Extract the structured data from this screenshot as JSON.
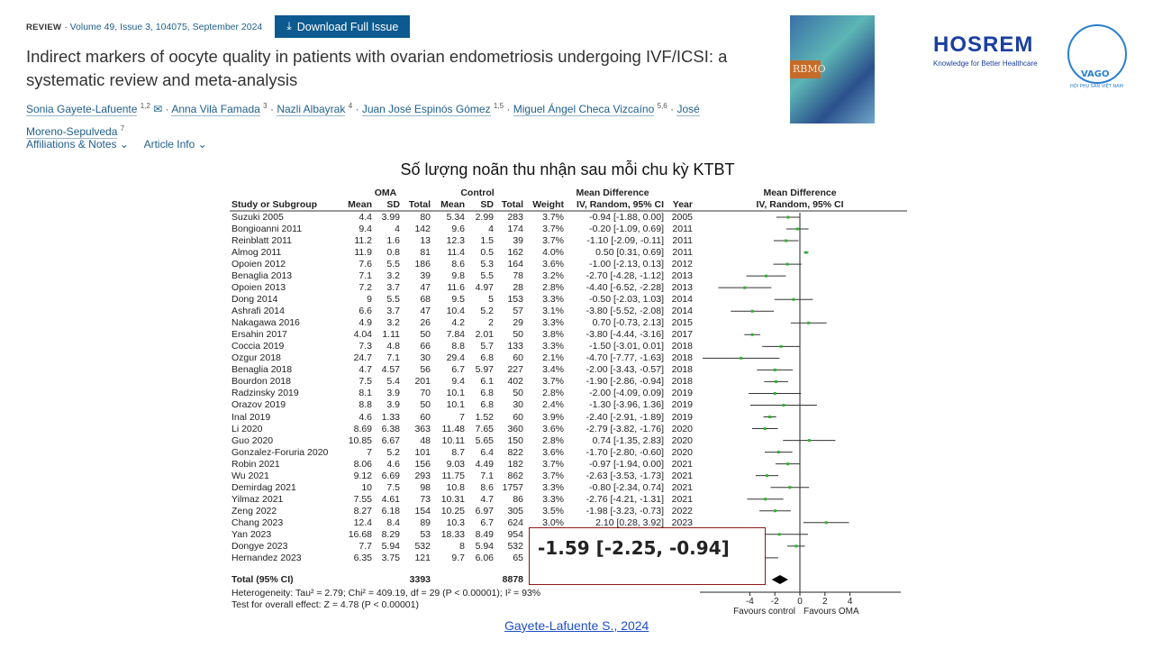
{
  "article": {
    "type": "REVIEW",
    "sep": "·",
    "citation": "Volume 49, Issue 3, 104075, September 2024",
    "download_label": "Download Full Issue",
    "download_icon": "download-icon",
    "title": "Indirect markers of oocyte quality in patients with ovarian endometriosis undergoing IVF/ICSI: a systematic review and meta-analysis",
    "authors": [
      {
        "name": "Sonia Gayete-Lafuente",
        "sup": "1,2"
      },
      {
        "name": "Anna Vilà Famada",
        "sup": "3"
      },
      {
        "name": "Nazli Albayrak",
        "sup": "4"
      },
      {
        "name": "Juan José Espinós Gómez",
        "sup": "1,5"
      },
      {
        "name": "Miguel Ángel Checa Vizcaíno",
        "sup": "5,6"
      },
      {
        "name": "José Moreno-Sepulveda",
        "sup": "7"
      }
    ],
    "affiliations_label": "Affiliations & Notes",
    "article_info_label": "Article Info"
  },
  "logos": {
    "journal_cover": "RBMO",
    "hosrem": "HOSREM",
    "hosrem_tagline": "Knowledge for Better Healthcare",
    "vago": "VAGO",
    "vago_sub": "HỘI PHỤ SẢN VIỆT NAM"
  },
  "slide_title": "Số lượng noãn thu nhận sau mỗi chu kỳ KTBT",
  "highlight": "-1.59 [-2.25, -0.94]",
  "source_link": "Gayete-Lafuente S., 2024",
  "chart_data": {
    "type": "table",
    "plot_type": "forest",
    "headers": {
      "group_oma": "OMA",
      "group_control": "Control",
      "group_md": "Mean Difference",
      "study": "Study or Subgroup",
      "mean": "Mean",
      "sd": "SD",
      "total": "Total",
      "weight": "Weight",
      "md_method": "IV, Random, 95% CI",
      "year": "Year",
      "plot_title": "Mean Difference",
      "plot_method": "IV, Random, 95% CI"
    },
    "rows": [
      {
        "study": "Suzuki 2005",
        "m1": "4.4",
        "sd1": "3.99",
        "n1": "80",
        "m2": "5.34",
        "sd2": "2.99",
        "n2": "283",
        "w": "3.7%",
        "md_text": "-0.94 [-1.88, 0.00]",
        "year": "2005",
        "md": -0.94,
        "lo": -1.88,
        "hi": 0.0
      },
      {
        "study": "Bongioanni 2011",
        "m1": "9.4",
        "sd1": "4",
        "n1": "142",
        "m2": "9.6",
        "sd2": "4",
        "n2": "174",
        "w": "3.7%",
        "md_text": "-0.20 [-1.09, 0.69]",
        "year": "2011",
        "md": -0.2,
        "lo": -1.09,
        "hi": 0.69
      },
      {
        "study": "Reinblatt 2011",
        "m1": "11.2",
        "sd1": "1.6",
        "n1": "13",
        "m2": "12.3",
        "sd2": "1.5",
        "n2": "39",
        "w": "3.7%",
        "md_text": "-1.10 [-2.09, -0.11]",
        "year": "2011",
        "md": -1.1,
        "lo": -2.09,
        "hi": -0.11
      },
      {
        "study": "Almog 2011",
        "m1": "11.9",
        "sd1": "0.8",
        "n1": "81",
        "m2": "11.4",
        "sd2": "0.5",
        "n2": "162",
        "w": "4.0%",
        "md_text": "0.50 [0.31, 0.69]",
        "year": "2011",
        "md": 0.5,
        "lo": 0.31,
        "hi": 0.69
      },
      {
        "study": "Opoien 2012",
        "m1": "7.6",
        "sd1": "5.5",
        "n1": "186",
        "m2": "8.6",
        "sd2": "5.3",
        "n2": "164",
        "w": "3.6%",
        "md_text": "-1.00 [-2.13, 0.13]",
        "year": "2012",
        "md": -1.0,
        "lo": -2.13,
        "hi": 0.13
      },
      {
        "study": "Benaglia 2013",
        "m1": "7.1",
        "sd1": "3.2",
        "n1": "39",
        "m2": "9.8",
        "sd2": "5.5",
        "n2": "78",
        "w": "3.2%",
        "md_text": "-2.70 [-4.28, -1.12]",
        "year": "2013",
        "md": -2.7,
        "lo": -4.28,
        "hi": -1.12
      },
      {
        "study": "Opoien 2013",
        "m1": "7.2",
        "sd1": "3.7",
        "n1": "47",
        "m2": "11.6",
        "sd2": "4.97",
        "n2": "28",
        "w": "2.8%",
        "md_text": "-4.40 [-6.52, -2.28]",
        "year": "2013",
        "md": -4.4,
        "lo": -6.52,
        "hi": -2.28
      },
      {
        "study": "Dong 2014",
        "m1": "9",
        "sd1": "5.5",
        "n1": "68",
        "m2": "9.5",
        "sd2": "5",
        "n2": "153",
        "w": "3.3%",
        "md_text": "-0.50 [-2.03, 1.03]",
        "year": "2014",
        "md": -0.5,
        "lo": -2.03,
        "hi": 1.03
      },
      {
        "study": "Ashrafi 2014",
        "m1": "6.6",
        "sd1": "3.7",
        "n1": "47",
        "m2": "10.4",
        "sd2": "5.2",
        "n2": "57",
        "w": "3.1%",
        "md_text": "-3.80 [-5.52, -2.08]",
        "year": "2014",
        "md": -3.8,
        "lo": -5.52,
        "hi": -2.08
      },
      {
        "study": "Nakagawa 2016",
        "m1": "4.9",
        "sd1": "3.2",
        "n1": "26",
        "m2": "4.2",
        "sd2": "2",
        "n2": "29",
        "w": "3.3%",
        "md_text": "0.70 [-0.73, 2.13]",
        "year": "2015",
        "md": 0.7,
        "lo": -0.73,
        "hi": 2.13
      },
      {
        "study": "Ersahin 2017",
        "m1": "4.04",
        "sd1": "1.11",
        "n1": "50",
        "m2": "7.84",
        "sd2": "2.01",
        "n2": "50",
        "w": "3.8%",
        "md_text": "-3.80 [-4.44, -3.16]",
        "year": "2017",
        "md": -3.8,
        "lo": -4.44,
        "hi": -3.16
      },
      {
        "study": "Coccia 2019",
        "m1": "7.3",
        "sd1": "4.8",
        "n1": "66",
        "m2": "8.8",
        "sd2": "5.7",
        "n2": "133",
        "w": "3.3%",
        "md_text": "-1.50 [-3.01, 0.01]",
        "year": "2018",
        "md": -1.5,
        "lo": -3.01,
        "hi": 0.01
      },
      {
        "study": "Ozgur 2018",
        "m1": "24.7",
        "sd1": "7.1",
        "n1": "30",
        "m2": "29.4",
        "sd2": "6.8",
        "n2": "60",
        "w": "2.1%",
        "md_text": "-4.70 [-7.77, -1.63]",
        "year": "2018",
        "md": -4.7,
        "lo": -7.77,
        "hi": -1.63
      },
      {
        "study": "Benaglia 2018",
        "m1": "4.7",
        "sd1": "4.57",
        "n1": "56",
        "m2": "6.7",
        "sd2": "5.97",
        "n2": "227",
        "w": "3.4%",
        "md_text": "-2.00 [-3.43, -0.57]",
        "year": "2018",
        "md": -2.0,
        "lo": -3.43,
        "hi": -0.57
      },
      {
        "study": "Bourdon 2018",
        "m1": "7.5",
        "sd1": "5.4",
        "n1": "201",
        "m2": "9.4",
        "sd2": "6.1",
        "n2": "402",
        "w": "3.7%",
        "md_text": "-1.90 [-2.86, -0.94]",
        "year": "2018",
        "md": -1.9,
        "lo": -2.86,
        "hi": -0.94
      },
      {
        "study": "Radzinsky 2019",
        "m1": "8.1",
        "sd1": "3.9",
        "n1": "70",
        "m2": "10.1",
        "sd2": "6.8",
        "n2": "50",
        "w": "2.8%",
        "md_text": "-2.00 [-4.09, 0.09]",
        "year": "2019",
        "md": -2.0,
        "lo": -4.09,
        "hi": 0.09
      },
      {
        "study": "Orazov 2019",
        "m1": "8.8",
        "sd1": "3.9",
        "n1": "50",
        "m2": "10.1",
        "sd2": "6.8",
        "n2": "30",
        "w": "2.4%",
        "md_text": "-1.30 [-3.96, 1.36]",
        "year": "2019",
        "md": -1.3,
        "lo": -3.96,
        "hi": 1.36
      },
      {
        "study": "Inal 2019",
        "m1": "4.6",
        "sd1": "1.33",
        "n1": "60",
        "m2": "7",
        "sd2": "1.52",
        "n2": "60",
        "w": "3.9%",
        "md_text": "-2.40 [-2.91, -1.89]",
        "year": "2019",
        "md": -2.4,
        "lo": -2.91,
        "hi": -1.89
      },
      {
        "study": "Li 2020",
        "m1": "8.69",
        "sd1": "6.38",
        "n1": "363",
        "m2": "11.48",
        "sd2": "7.65",
        "n2": "360",
        "w": "3.6%",
        "md_text": "-2.79 [-3.82, -1.76]",
        "year": "2020",
        "md": -2.79,
        "lo": -3.82,
        "hi": -1.76
      },
      {
        "study": "Guo 2020",
        "m1": "10.85",
        "sd1": "6.67",
        "n1": "48",
        "m2": "10.11",
        "sd2": "5.65",
        "n2": "150",
        "w": "2.8%",
        "md_text": "0.74 [-1.35, 2.83]",
        "year": "2020",
        "md": 0.74,
        "lo": -1.35,
        "hi": 2.83
      },
      {
        "study": "Gonzalez-Foruria 2020",
        "m1": "7",
        "sd1": "5.2",
        "n1": "101",
        "m2": "8.7",
        "sd2": "6.4",
        "n2": "822",
        "w": "3.6%",
        "md_text": "-1.70 [-2.80, -0.60]",
        "year": "2020",
        "md": -1.7,
        "lo": -2.8,
        "hi": -0.6
      },
      {
        "study": "Robin 2021",
        "m1": "8.06",
        "sd1": "4.6",
        "n1": "156",
        "m2": "9.03",
        "sd2": "4.49",
        "n2": "182",
        "w": "3.7%",
        "md_text": "-0.97 [-1.94, 0.00]",
        "year": "2021",
        "md": -0.97,
        "lo": -1.94,
        "hi": 0.0
      },
      {
        "study": "Wu 2021",
        "m1": "9.12",
        "sd1": "6.69",
        "n1": "293",
        "m2": "11.75",
        "sd2": "7.1",
        "n2": "862",
        "w": "3.7%",
        "md_text": "-2.63 [-3.53, -1.73]",
        "year": "2021",
        "md": -2.63,
        "lo": -3.53,
        "hi": -1.73
      },
      {
        "study": "Demirdag 2021",
        "m1": "10",
        "sd1": "7.5",
        "n1": "98",
        "m2": "10.8",
        "sd2": "8.6",
        "n2": "1757",
        "w": "3.3%",
        "md_text": "-0.80 [-2.34, 0.74]",
        "year": "2021",
        "md": -0.8,
        "lo": -2.34,
        "hi": 0.74
      },
      {
        "study": "Yilmaz 2021",
        "m1": "7.55",
        "sd1": "4.61",
        "n1": "73",
        "m2": "10.31",
        "sd2": "4.7",
        "n2": "86",
        "w": "3.3%",
        "md_text": "-2.76 [-4.21, -1.31]",
        "year": "2021",
        "md": -2.76,
        "lo": -4.21,
        "hi": -1.31
      },
      {
        "study": "Zeng 2022",
        "m1": "8.27",
        "sd1": "6.18",
        "n1": "154",
        "m2": "10.25",
        "sd2": "6.97",
        "n2": "305",
        "w": "3.5%",
        "md_text": "-1.98 [-3.23, -0.73]",
        "year": "2022",
        "md": -1.98,
        "lo": -3.23,
        "hi": -0.73
      },
      {
        "study": "Chang 2023",
        "m1": "12.4",
        "sd1": "8.4",
        "n1": "89",
        "m2": "10.3",
        "sd2": "6.7",
        "n2": "624",
        "w": "3.0%",
        "md_text": "2.10 [0.28, 3.92]",
        "year": "2023",
        "md": 2.1,
        "lo": 0.28,
        "hi": 3.92
      },
      {
        "study": "Yan 2023",
        "m1": "16.68",
        "sd1": "8.29",
        "n1": "53",
        "m2": "18.33",
        "sd2": "8.49",
        "n2": "954",
        "w": null,
        "md_text": null,
        "year": null,
        "md": -1.65,
        "lo": -3.95,
        "hi": 0.65
      },
      {
        "study": "Dongye 2023",
        "m1": "7.7",
        "sd1": "5.94",
        "n1": "532",
        "m2": "8",
        "sd2": "5.94",
        "n2": "532",
        "w": null,
        "md_text": null,
        "year": null,
        "md": -0.3,
        "lo": -1.01,
        "hi": 0.41
      },
      {
        "study": "Hernandez 2023",
        "m1": "6.35",
        "sd1": "3.75",
        "n1": "121",
        "m2": "9.7",
        "sd2": "6.06",
        "n2": "65",
        "w": null,
        "md_text": null,
        "year": null,
        "md": -3.35,
        "lo": -4.97,
        "hi": -1.73
      }
    ],
    "total": {
      "label": "Total (95% CI)",
      "n1": "3393",
      "n2": "8878",
      "md": -1.59,
      "lo": -2.25,
      "hi": -0.94
    },
    "heterogeneity": "Heterogeneity: Tau² = 2.79; Chi² = 409.19, df = 29 (P < 0.00001); I² = 93%",
    "overall_effect": "Test for overall effect: Z = 4.78 (P < 0.00001)",
    "x_ticks": [
      "-4",
      "-2",
      "0",
      "2",
      "4"
    ],
    "xlim": [
      -8,
      8
    ],
    "favours_left": "Favours control",
    "favours_right": "Favours OMA",
    "point_color": "#2db52d"
  }
}
